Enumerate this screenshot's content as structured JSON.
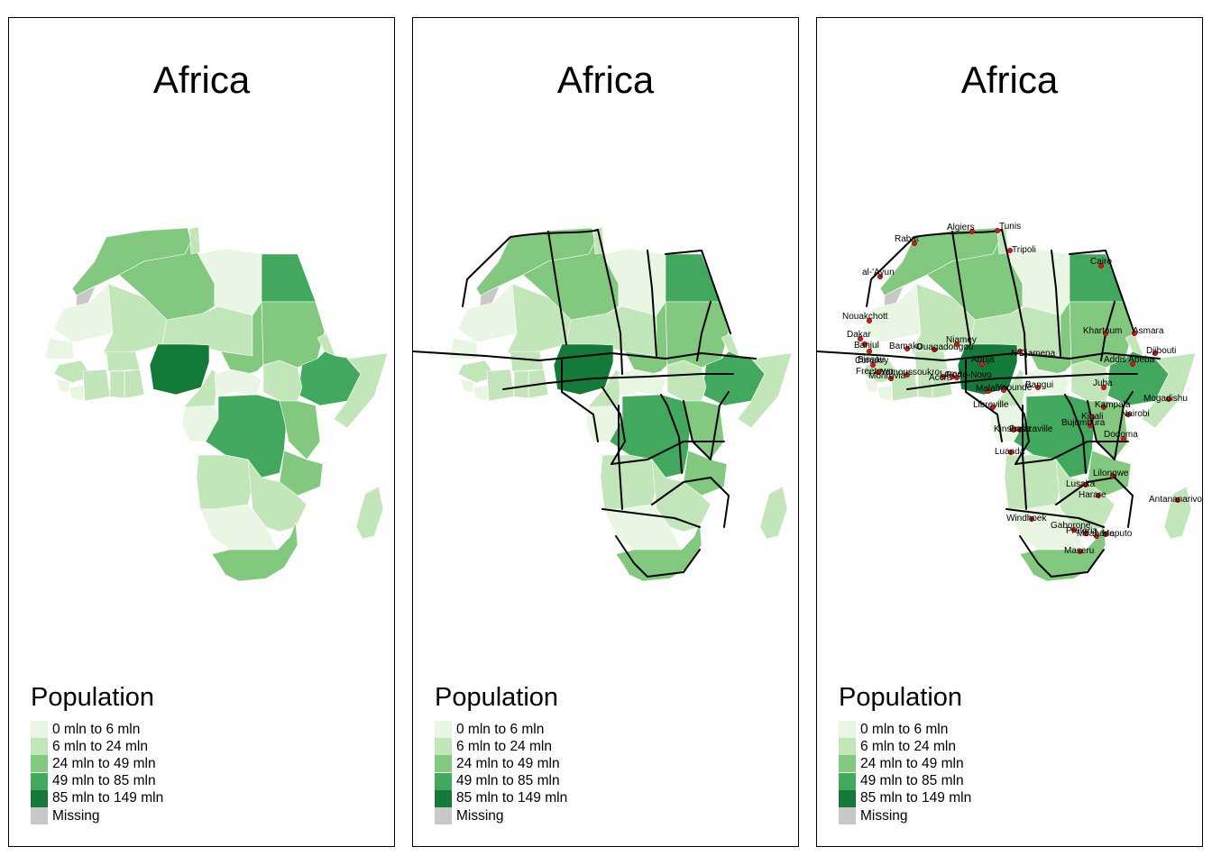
{
  "panels": [
    {
      "title": "Africa",
      "show_routes": false,
      "show_capitals": false
    },
    {
      "title": "Africa",
      "show_routes": true,
      "show_capitals": false
    },
    {
      "title": "Africa",
      "show_routes": true,
      "show_capitals": true
    }
  ],
  "legend": {
    "title": "Population",
    "items": [
      {
        "label": "0 mln to 6 mln",
        "color": "#e8f6e3"
      },
      {
        "label": "6 mln to 24 mln",
        "color": "#c2e6ba"
      },
      {
        "label": "24 mln to 49 mln",
        "color": "#82c97f"
      },
      {
        "label": "49 mln to 85 mln",
        "color": "#41a85d"
      },
      {
        "label": "85 mln to 149 mln",
        "color": "#137a3a"
      },
      {
        "label": "Missing",
        "color": "#c8c8c8"
      }
    ]
  },
  "capitals": [
    "Algiers",
    "Tunis",
    "Rabat",
    "Tripoli",
    "al-'Ayun",
    "Cairo",
    "Nouakchott",
    "Dakar",
    "Banjul",
    "Bissau",
    "Bamako",
    "Ouagadougou",
    "Niamey",
    "N'Djamena",
    "Khartoum",
    "Asmara",
    "Djibouti",
    "Conakry",
    "Freetown",
    "Monrovia",
    "Yamoussoukro",
    "Accra",
    "Lomé",
    "Porto-Novo",
    "Abuja",
    "Addis Abeba",
    "Malabo",
    "Yaoundé",
    "Bangui",
    "Juba",
    "Mogadishu",
    "Libreville",
    "Kampala",
    "Nairobi",
    "Kigali",
    "Bujumbura",
    "Brazzaville",
    "Kinshasa",
    "Dodoma",
    "Luanda",
    "Lilongwe",
    "Lusaka",
    "Harare",
    "Antananarivo",
    "Windhoek",
    "Gaborone",
    "Pretoria",
    "Maputo",
    "Mbabane",
    "Maseru"
  ]
}
